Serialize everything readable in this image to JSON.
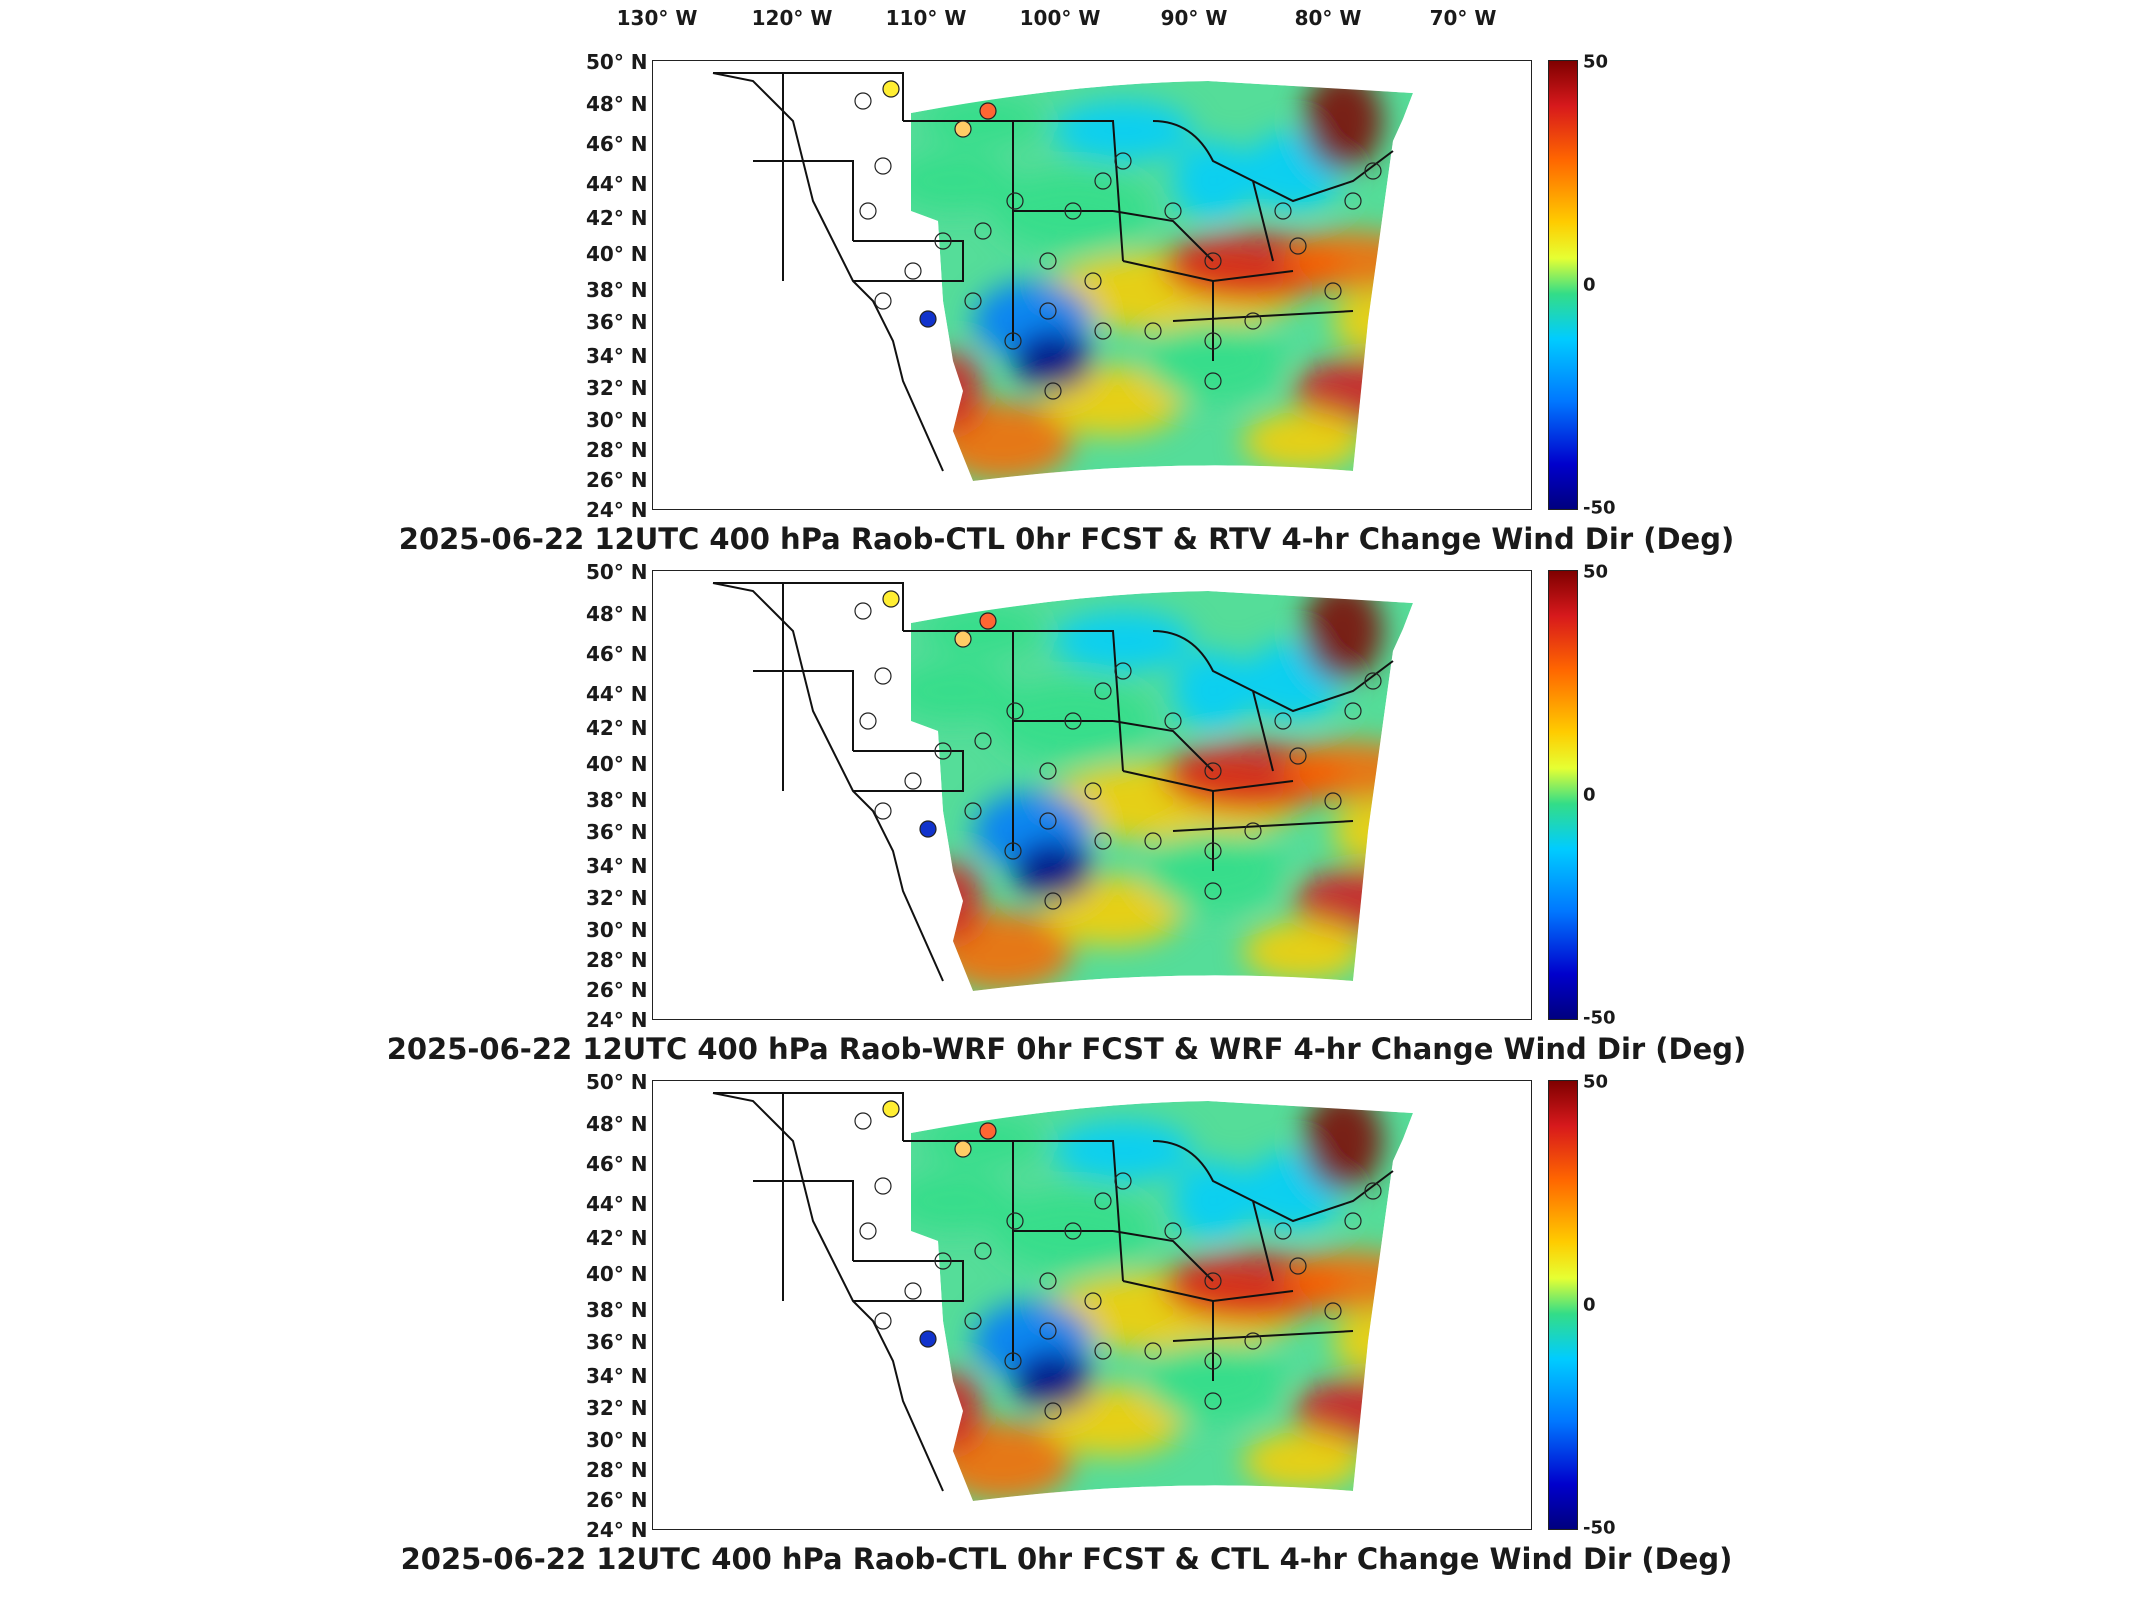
{
  "lon_labels": [
    "130° W",
    "120° W",
    "110° W",
    "100° W",
    "90° W",
    "80° W",
    "70° W"
  ],
  "lat_labels": [
    "50° N",
    "48° N",
    "46° N",
    "44° N",
    "42° N",
    "40° N",
    "38° N",
    "36° N",
    "34° N",
    "32° N",
    "30° N",
    "28° N",
    "26° N",
    "24° N"
  ],
  "colorbar": {
    "max_label": "50",
    "mid_label": "0",
    "min_label": "-50",
    "colors": [
      "#7f0000",
      "#d7191c",
      "#ff6600",
      "#ffcc00",
      "#33dd88",
      "#00ccff",
      "#0077ff",
      "#00007f"
    ]
  },
  "panels": [
    {
      "title": "2025-06-22 12UTC 400 hPa Raob-CTL 0hr FCST & RTV 4-hr Change Wind Dir (Deg)"
    },
    {
      "title": "2025-06-22 12UTC 400 hPa Raob-WRF 0hr FCST & WRF 4-hr Change Wind Dir (Deg)"
    },
    {
      "title": "2025-06-22 12UTC 400 hPa Raob-CTL 0hr FCST & CTL 4-hr Change Wind Dir (Deg)"
    }
  ]
}
